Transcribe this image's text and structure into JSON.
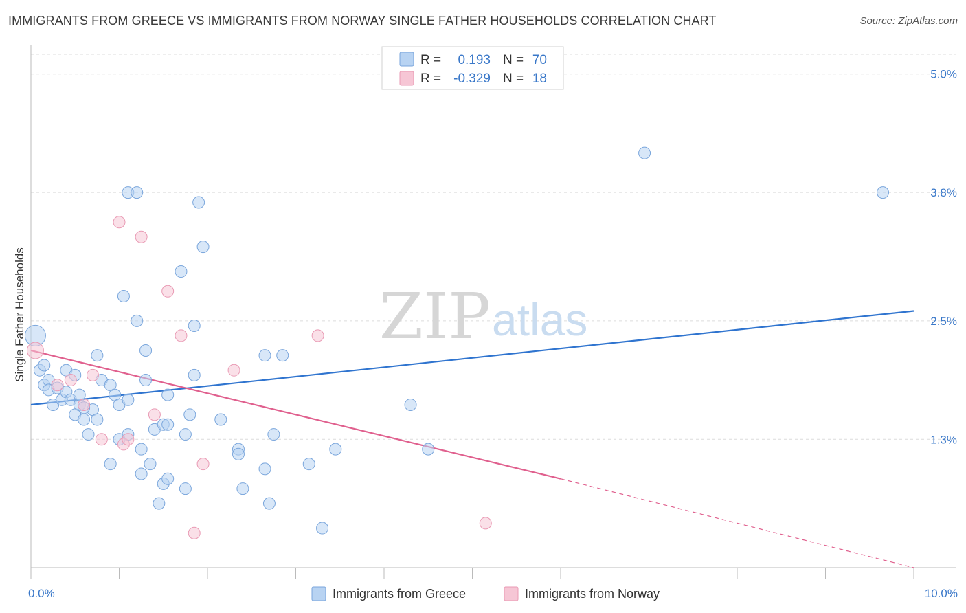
{
  "title": "IMMIGRANTS FROM GREECE VS IMMIGRANTS FROM NORWAY SINGLE FATHER HOUSEHOLDS CORRELATION CHART",
  "source": "Source: ZipAtlas.com",
  "watermark": {
    "zip": "ZIP",
    "atlas": "atlas"
  },
  "colors": {
    "greece_fill": "#b8d3f2",
    "greece_stroke": "#7aa6dc",
    "greece_line": "#2f74cf",
    "norway_fill": "#f6c6d5",
    "norway_stroke": "#e99ab4",
    "norway_line": "#e0608e",
    "tick_text": "#3a78c9",
    "grid": "#dcdcdc"
  },
  "legend": {
    "rows": [
      {
        "r_label": "R =",
        "r_value": "0.193",
        "n_label": "N =",
        "n_value": "70"
      },
      {
        "r_label": "R =",
        "r_value": "-0.329",
        "n_label": "N =",
        "n_value": "18"
      }
    ]
  },
  "chart_data": {
    "type": "scatter",
    "title": "IMMIGRANTS FROM GREECE VS IMMIGRANTS FROM NORWAY SINGLE FATHER HOUSEHOLDS CORRELATION CHART",
    "xlabel": "",
    "ylabel": "Single Father Households",
    "xlim": [
      0,
      10
    ],
    "ylim": [
      0,
      5.2
    ],
    "x_tick_labels": [
      {
        "value": 0,
        "label": "0.0%"
      },
      {
        "value": 10,
        "label": "10.0%"
      }
    ],
    "y_tick_labels": [
      {
        "value": 1.3,
        "label": "1.3%"
      },
      {
        "value": 2.5,
        "label": "2.5%"
      },
      {
        "value": 3.8,
        "label": "3.8%"
      },
      {
        "value": 5.0,
        "label": "5.0%"
      }
    ],
    "y_grid": [
      1.3,
      2.5,
      3.8,
      5.0,
      5.2
    ],
    "x_ticks": [
      0,
      1,
      2,
      3,
      4,
      5,
      6,
      7,
      8,
      9,
      10
    ],
    "series": [
      {
        "name": "Immigrants from Greece",
        "trend": {
          "x0": 0,
          "y0": 1.65,
          "x1": 10,
          "y1": 2.6
        },
        "points": [
          [
            0.05,
            2.35
          ],
          [
            0.1,
            2.0
          ],
          [
            0.15,
            1.85
          ],
          [
            0.2,
            1.9
          ],
          [
            0.2,
            1.8
          ],
          [
            0.3,
            1.82
          ],
          [
            0.25,
            1.65
          ],
          [
            0.35,
            1.7
          ],
          [
            0.4,
            1.78
          ],
          [
            0.4,
            2.0
          ],
          [
            0.45,
            1.7
          ],
          [
            0.5,
            1.95
          ],
          [
            0.5,
            1.55
          ],
          [
            0.55,
            1.65
          ],
          [
            0.55,
            1.75
          ],
          [
            0.6,
            1.5
          ],
          [
            0.65,
            1.35
          ],
          [
            0.7,
            1.6
          ],
          [
            0.75,
            1.5
          ],
          [
            0.75,
            2.15
          ],
          [
            0.8,
            1.9
          ],
          [
            0.9,
            1.85
          ],
          [
            0.9,
            1.05
          ],
          [
            0.95,
            1.75
          ],
          [
            1.0,
            1.3
          ],
          [
            1.0,
            1.65
          ],
          [
            1.05,
            2.75
          ],
          [
            1.1,
            1.35
          ],
          [
            1.1,
            1.7
          ],
          [
            1.2,
            2.5
          ],
          [
            1.1,
            3.8
          ],
          [
            1.2,
            3.8
          ],
          [
            1.25,
            1.2
          ],
          [
            1.25,
            0.95
          ],
          [
            1.3,
            2.2
          ],
          [
            1.3,
            1.9
          ],
          [
            1.35,
            1.05
          ],
          [
            1.4,
            1.4
          ],
          [
            1.45,
            0.65
          ],
          [
            1.5,
            1.45
          ],
          [
            1.5,
            0.85
          ],
          [
            1.55,
            1.45
          ],
          [
            1.55,
            0.9
          ],
          [
            1.55,
            1.75
          ],
          [
            1.7,
            3.0
          ],
          [
            1.75,
            1.35
          ],
          [
            1.75,
            0.8
          ],
          [
            1.8,
            1.55
          ],
          [
            1.85,
            1.95
          ],
          [
            1.85,
            2.45
          ],
          [
            1.9,
            3.7
          ],
          [
            1.95,
            3.25
          ],
          [
            2.15,
            1.5
          ],
          [
            2.35,
            1.2
          ],
          [
            2.35,
            1.15
          ],
          [
            2.4,
            0.8
          ],
          [
            2.65,
            2.15
          ],
          [
            2.65,
            1.0
          ],
          [
            2.7,
            0.65
          ],
          [
            2.75,
            1.35
          ],
          [
            2.85,
            2.15
          ],
          [
            3.15,
            1.05
          ],
          [
            3.3,
            0.4
          ],
          [
            3.45,
            1.2
          ],
          [
            4.3,
            1.65
          ],
          [
            4.5,
            1.2
          ],
          [
            6.95,
            4.2
          ],
          [
            9.65,
            3.8
          ],
          [
            0.15,
            2.05
          ],
          [
            0.6,
            1.62
          ]
        ]
      },
      {
        "name": "Immigrants from Norway",
        "trend_solid": {
          "x0": 0,
          "y0": 2.2,
          "x1": 6.0,
          "y1": 0.9
        },
        "trend_dashed": {
          "x0": 6.0,
          "y0": 0.9,
          "x1": 10,
          "y1": 0.0
        },
        "points": [
          [
            0.05,
            2.2
          ],
          [
            0.3,
            1.85
          ],
          [
            0.45,
            1.9
          ],
          [
            0.6,
            1.65
          ],
          [
            0.7,
            1.95
          ],
          [
            0.8,
            1.3
          ],
          [
            1.0,
            3.5
          ],
          [
            1.05,
            1.25
          ],
          [
            1.1,
            1.3
          ],
          [
            1.25,
            3.35
          ],
          [
            1.4,
            1.55
          ],
          [
            1.55,
            2.8
          ],
          [
            1.7,
            2.35
          ],
          [
            1.85,
            0.35
          ],
          [
            1.95,
            1.05
          ],
          [
            2.3,
            2.0
          ],
          [
            3.25,
            2.35
          ],
          [
            5.15,
            0.45
          ]
        ]
      }
    ]
  },
  "bottom_legend": {
    "greece_label": "Immigrants from Greece",
    "norway_label": "Immigrants from Norway"
  }
}
